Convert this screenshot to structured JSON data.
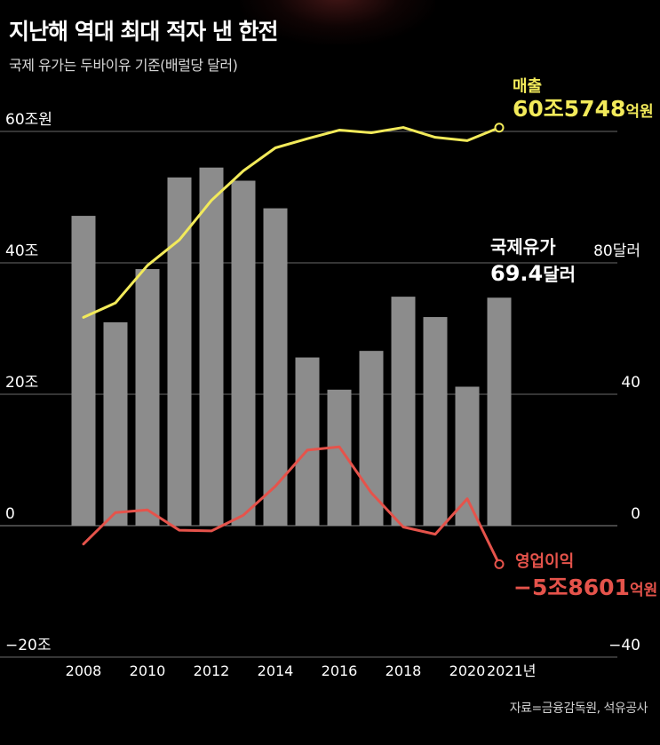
{
  "header": {
    "title": "지난해 역대 최대 적자 낸 한전",
    "subtitle": "국제 유가는 두바이유 기준(배럴당 달러)",
    "source": "자료=금융감독원, 석유공사"
  },
  "labels": {
    "sales_name": "매출",
    "sales_value_main": "60조5748",
    "sales_value_unit": "억원",
    "oil_name": "국제유가",
    "oil_value_main": "69.4",
    "oil_value_unit": "달러",
    "op_name": "영업이익",
    "op_value_main": "−5조8601",
    "op_value_unit": "억원"
  },
  "colors": {
    "sales": "#f2ea5a",
    "operating_profit": "#e5534b",
    "oil_bars": "#8c8c8c",
    "grid": "#6a6a6a"
  },
  "chart_data": {
    "type": "bar+line",
    "x": [
      2008,
      2009,
      2010,
      2011,
      2012,
      2013,
      2014,
      2015,
      2016,
      2017,
      2018,
      2019,
      2020,
      2021
    ],
    "x_tick_labels": [
      "2008",
      "2010",
      "2012",
      "2014",
      "2016",
      "2018",
      "2020",
      "2021년"
    ],
    "y_left": {
      "ticks": [
        "60조원",
        "40조",
        "20조",
        "0",
        "−20조"
      ],
      "range": [
        -20,
        60
      ],
      "unit": "조원"
    },
    "y_right": {
      "ticks": [
        "80달러",
        "40",
        "0",
        "−40"
      ],
      "range": [
        -40,
        120
      ],
      "unit": "달러"
    },
    "series": [
      {
        "name": "국제유가",
        "type": "bar",
        "axis": "right",
        "values": [
          94.3,
          61.9,
          78.1,
          106.0,
          109.0,
          105.0,
          96.6,
          51.2,
          41.4,
          53.2,
          69.7,
          63.5,
          42.3,
          69.4
        ]
      },
      {
        "name": "매출",
        "type": "line",
        "axis": "left",
        "values": [
          31.7,
          33.9,
          39.6,
          43.5,
          49.5,
          54.0,
          57.5,
          58.9,
          60.2,
          59.8,
          60.6,
          59.1,
          58.6,
          60.57
        ]
      },
      {
        "name": "영업이익",
        "type": "line",
        "axis": "left",
        "values": [
          -2.8,
          2.0,
          2.4,
          -0.7,
          -0.8,
          1.6,
          6.0,
          11.5,
          12.0,
          5.0,
          -0.2,
          -1.3,
          4.1,
          -5.86
        ]
      }
    ],
    "grid": true
  }
}
